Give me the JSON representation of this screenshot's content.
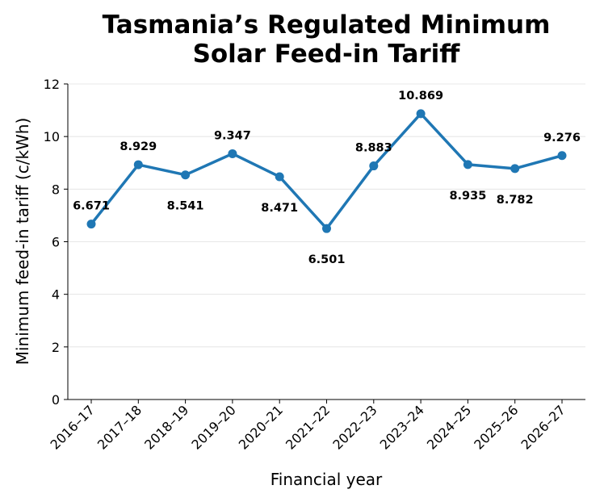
{
  "chart_data": {
    "type": "line",
    "title": "Tasmania’s Regulated Minimum Solar Feed-in Tariff",
    "title_lines": [
      "Tasmania’s Regulated Minimum",
      "Solar Feed-in Tariff"
    ],
    "xlabel": "Financial year",
    "ylabel": "Minimum feed-in tariff (c/kWh)",
    "categories": [
      "2016–17",
      "2017–18",
      "2018–19",
      "2019–20",
      "2020–21",
      "2021–22",
      "2022–23",
      "2023–24",
      "2024–25",
      "2025–26",
      "2026–27"
    ],
    "values": [
      6.671,
      8.929,
      8.541,
      9.347,
      8.471,
      6.501,
      8.883,
      10.869,
      8.935,
      8.782,
      9.276
    ],
    "value_labels": [
      "6.671",
      "8.929",
      "8.541",
      "9.347",
      "8.471",
      "6.501",
      "8.883",
      "10.869",
      "8.935",
      "8.782",
      "9.276"
    ],
    "label_positions": [
      "above",
      "above",
      "below",
      "above",
      "below",
      "below",
      "above",
      "above",
      "below",
      "below",
      "above"
    ],
    "ylim": [
      0,
      12
    ],
    "yticks": [
      0,
      2,
      4,
      6,
      8,
      10,
      12
    ],
    "ytick_labels": [
      "0",
      "2",
      "4",
      "6",
      "8",
      "10",
      "12"
    ],
    "grid": "horizontal",
    "line_color": "#1f77b4"
  }
}
